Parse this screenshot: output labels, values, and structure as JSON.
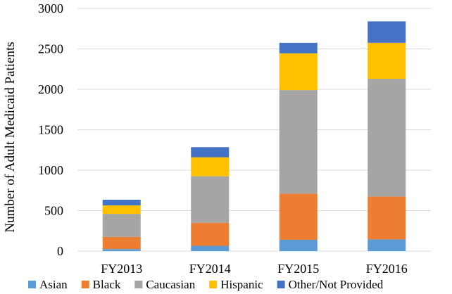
{
  "chart_data": {
    "type": "bar",
    "stacked": true,
    "title": "",
    "xlabel": "",
    "ylabel": "Number of Adult Medicaid Patients",
    "ylim": [
      0,
      3000
    ],
    "yticks": [
      0,
      500,
      1000,
      1500,
      2000,
      2500,
      3000
    ],
    "grid": true,
    "legend": "bottom",
    "categories": [
      "FY2013",
      "FY2014",
      "FY2015",
      "FY2016"
    ],
    "series": [
      {
        "name": "Asian",
        "color": "#5B9BD5",
        "values": [
          25,
          65,
          140,
          145
        ]
      },
      {
        "name": "Black",
        "color": "#ED7D31",
        "values": [
          150,
          285,
          570,
          530
        ]
      },
      {
        "name": "Caucasian",
        "color": "#A5A5A5",
        "values": [
          285,
          575,
          1280,
          1455
        ]
      },
      {
        "name": "Hispanic",
        "color": "#FFC000",
        "values": [
          105,
          235,
          455,
          445
        ]
      },
      {
        "name": "Other/Not Provided",
        "color": "#4472C4",
        "values": [
          70,
          125,
          130,
          265
        ]
      }
    ]
  }
}
